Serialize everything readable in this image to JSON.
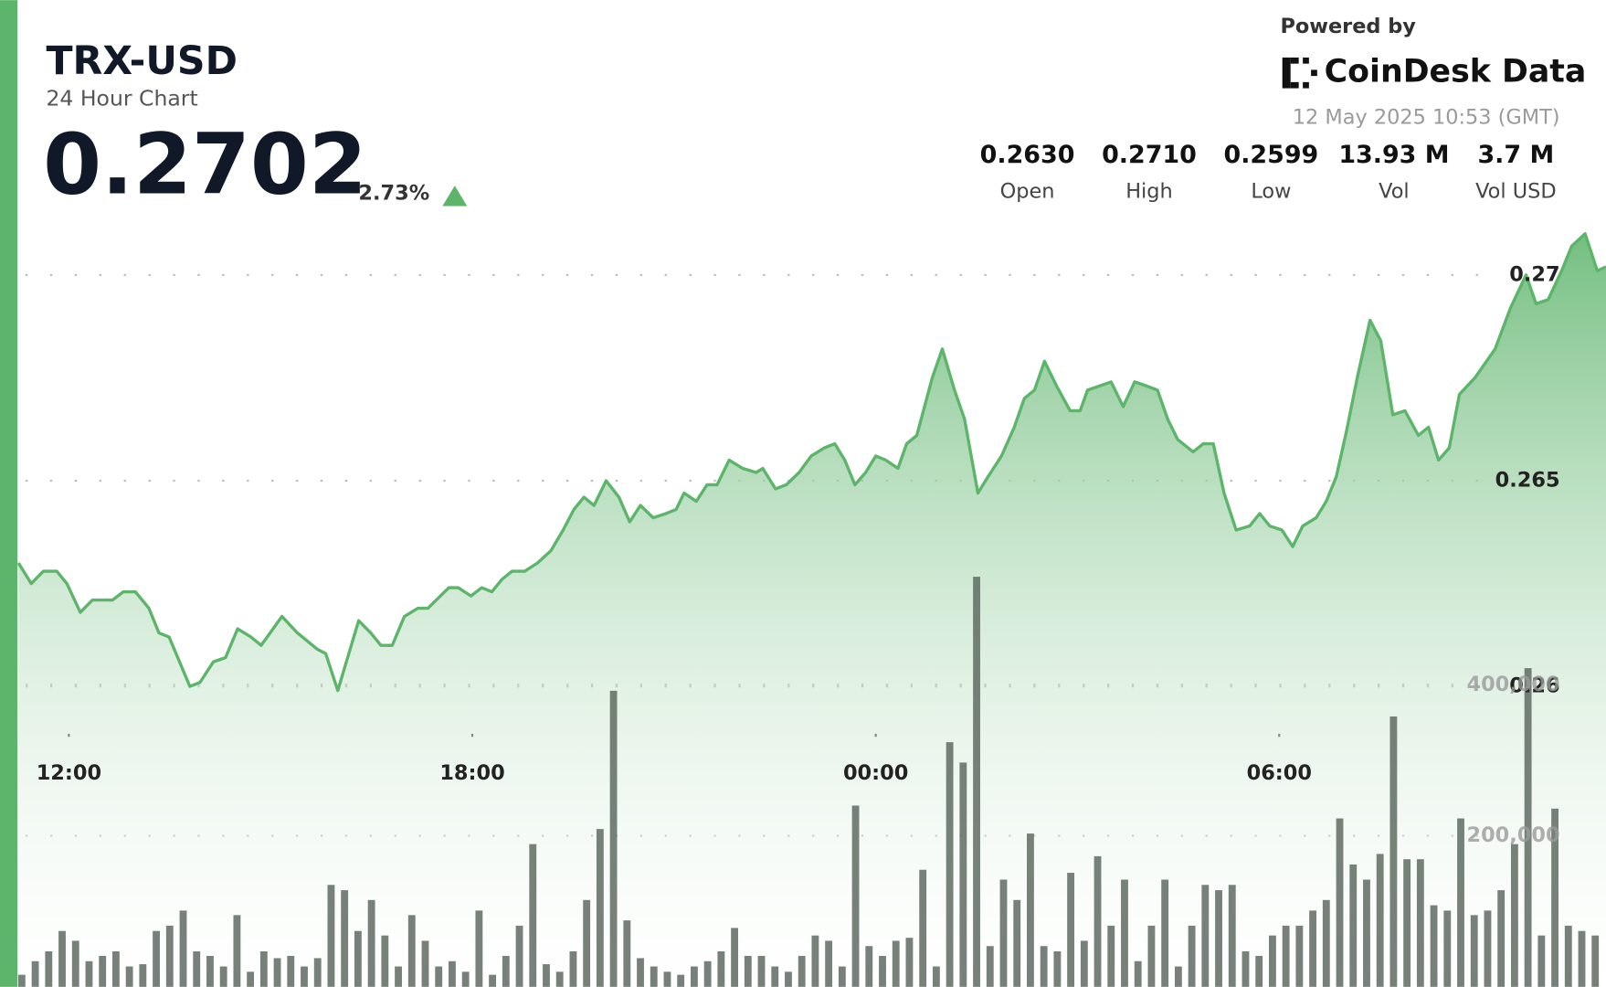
{
  "header": {
    "powered_by": "Powered by",
    "brand": "CoinDesk Data",
    "timestamp": "12 May 2025 10:53 (GMT)",
    "price": "0.2702",
    "change": "2.73%",
    "stats": [
      {
        "value": "0.2630",
        "label": "Open"
      },
      {
        "value": "0.2710",
        "label": "High"
      },
      {
        "value": "0.2599",
        "label": "Low"
      },
      {
        "value": "13.93 M",
        "label": "Vol"
      },
      {
        "value": "3.7 M",
        "label": "Vol USD"
      }
    ]
  },
  "chart_data": {
    "type": "line",
    "title": "TRX-USD",
    "subtitle": "24 Hour Chart",
    "color": "#5cb56a",
    "grid": true,
    "x": [
      11.25,
      11.44,
      11.62,
      11.82,
      11.97,
      12.17,
      12.35,
      12.65,
      12.81,
      12.99,
      13.19,
      13.34,
      13.49,
      13.8,
      13.95,
      14.15,
      14.33,
      14.51,
      14.71,
      14.86,
      15.17,
      15.4,
      15.7,
      15.82,
      16.0,
      16.31,
      16.49,
      16.64,
      16.81,
      16.99,
      17.19,
      17.34,
      17.65,
      17.79,
      17.98,
      18.14,
      18.29,
      18.44,
      18.59,
      18.78,
      18.97,
      19.17,
      19.35,
      19.51,
      19.66,
      19.81,
      19.99,
      20.18,
      20.34,
      20.5,
      20.69,
      20.88,
      21.03,
      21.15,
      21.33,
      21.49,
      21.64,
      21.82,
      22.02,
      22.22,
      22.32,
      22.51,
      22.67,
      22.86,
      23.04,
      23.24,
      23.39,
      23.54,
      23.69,
      23.85,
      24.0,
      24.15,
      24.33,
      24.46,
      24.61,
      24.84,
      24.99,
      25.17,
      25.32,
      25.52,
      25.67,
      25.87,
      26.06,
      26.21,
      26.36,
      26.51,
      26.69,
      26.89,
      27.04,
      27.15,
      27.5,
      27.68,
      27.85,
      28.03,
      28.19,
      28.34,
      28.49,
      28.72,
      28.87,
      29.02,
      29.18,
      29.36,
      29.56,
      29.71,
      29.86,
      30.04,
      30.2,
      30.35,
      30.55,
      30.7,
      30.85,
      31.0,
      31.16,
      31.35,
      31.51,
      31.69,
      31.87,
      32.07,
      32.22,
      32.37,
      32.53,
      32.68,
      32.91,
      33.21,
      33.44,
      33.67,
      33.82,
      34.0,
      34.2,
      34.35,
      34.55,
      34.73,
      34.86
    ],
    "values": [
      0.263,
      0.2625,
      0.2628,
      0.2628,
      0.2625,
      0.2618,
      0.2621,
      0.2621,
      0.2623,
      0.2623,
      0.2619,
      0.2613,
      0.2612,
      0.26,
      0.2601,
      0.2606,
      0.2607,
      0.2614,
      0.2612,
      0.261,
      0.2617,
      0.2613,
      0.2609,
      0.2608,
      0.2599,
      0.2616,
      0.2613,
      0.261,
      0.261,
      0.2617,
      0.2619,
      0.2619,
      0.2624,
      0.2624,
      0.2622,
      0.2624,
      0.2623,
      0.2626,
      0.2628,
      0.2628,
      0.263,
      0.2633,
      0.2638,
      0.2643,
      0.2646,
      0.2644,
      0.265,
      0.2646,
      0.264,
      0.2644,
      0.2641,
      0.2642,
      0.2643,
      0.2647,
      0.2645,
      0.2649,
      0.2649,
      0.2655,
      0.2653,
      0.2652,
      0.2653,
      0.2648,
      0.2649,
      0.2652,
      0.2656,
      0.2658,
      0.2659,
      0.2655,
      0.2649,
      0.2652,
      0.2656,
      0.2655,
      0.2653,
      0.2659,
      0.2661,
      0.2675,
      0.2682,
      0.2672,
      0.2665,
      0.2647,
      0.2651,
      0.2656,
      0.2663,
      0.267,
      0.2672,
      0.2679,
      0.2673,
      0.2667,
      0.2667,
      0.2672,
      0.2674,
      0.2668,
      0.2674,
      0.2673,
      0.2672,
      0.2665,
      0.266,
      0.2657,
      0.2659,
      0.2659,
      0.2647,
      0.2638,
      0.2639,
      0.2642,
      0.2639,
      0.2638,
      0.2634,
      0.2639,
      0.2641,
      0.2645,
      0.2651,
      0.2662,
      0.2675,
      0.2689,
      0.2684,
      0.2666,
      0.2667,
      0.2661,
      0.2663,
      0.2655,
      0.2658,
      0.2671,
      0.2675,
      0.2682,
      0.2692,
      0.27,
      0.2693,
      0.2694,
      0.2701,
      0.2707,
      0.271,
      0.2701,
      0.2702
    ],
    "xlim": [
      11.25,
      34.86
    ],
    "xticks": [
      {
        "value": 12,
        "label": "12:00"
      },
      {
        "value": 18,
        "label": "18:00"
      },
      {
        "value": 24,
        "label": "00:00"
      },
      {
        "value": 30,
        "label": "06:00"
      }
    ],
    "ylim": [
      0.2527,
      0.2712
    ],
    "yticks": [
      0.26,
      0.265,
      0.27
    ],
    "y2lim": [
      0,
      1008000
    ],
    "y2ticks": [
      {
        "value": 200000,
        "label": "200,000"
      },
      {
        "value": 400000,
        "label": "400,000"
      }
    ],
    "bars": {
      "type": "bar",
      "axis": "y2",
      "color": "#5f6b62",
      "x": [
        11.3,
        11.5,
        11.7,
        11.9,
        12.1,
        12.3,
        12.5,
        12.7,
        12.9,
        13.1,
        13.3,
        13.5,
        13.7,
        13.9,
        14.1,
        14.3,
        14.5,
        14.7,
        14.9,
        15.1,
        15.3,
        15.5,
        15.7,
        15.9,
        16.1,
        16.3,
        16.5,
        16.7,
        16.9,
        17.1,
        17.3,
        17.5,
        17.7,
        17.9,
        18.1,
        18.3,
        18.5,
        18.7,
        18.9,
        19.1,
        19.3,
        19.5,
        19.7,
        19.9,
        20.1,
        20.3,
        20.5,
        20.7,
        20.9,
        21.1,
        21.3,
        21.5,
        21.7,
        21.9,
        22.1,
        22.3,
        22.5,
        22.7,
        22.9,
        23.1,
        23.3,
        23.5,
        23.7,
        23.9,
        24.1,
        24.3,
        24.5,
        24.7,
        24.9,
        25.1,
        25.3,
        25.5,
        25.7,
        25.9,
        26.1,
        26.3,
        26.5,
        26.7,
        26.9,
        27.1,
        27.3,
        27.5,
        27.7,
        27.9,
        28.1,
        28.3,
        28.5,
        28.7,
        28.9,
        29.1,
        29.3,
        29.5,
        29.7,
        29.9,
        30.1,
        30.3,
        30.5,
        30.7,
        30.9,
        31.1,
        31.3,
        31.5,
        31.7,
        31.9,
        32.1,
        32.3,
        32.5,
        32.7,
        32.9,
        33.1,
        33.3,
        33.5,
        33.7,
        33.9,
        34.1,
        34.3,
        34.5,
        34.7
      ],
      "values": [
        16000,
        34000,
        47000,
        74000,
        61000,
        34000,
        41000,
        47000,
        27000,
        30000,
        74000,
        81000,
        101000,
        47000,
        41000,
        27000,
        95000,
        20000,
        47000,
        38000,
        41000,
        27000,
        38000,
        135000,
        128000,
        74000,
        115000,
        68000,
        27000,
        95000,
        61000,
        27000,
        34000,
        20000,
        101000,
        16000,
        41000,
        81000,
        189000,
        30000,
        20000,
        47000,
        115000,
        209000,
        392000,
        88000,
        38000,
        27000,
        20000,
        16000,
        27000,
        34000,
        47000,
        78000,
        41000,
        41000,
        27000,
        20000,
        41000,
        68000,
        61000,
        27000,
        240000,
        54000,
        41000,
        61000,
        65000,
        155000,
        27000,
        324000,
        297000,
        543000,
        54000,
        142000,
        115000,
        203000,
        54000,
        47000,
        151000,
        61000,
        173000,
        81000,
        142000,
        34000,
        81000,
        142000,
        27000,
        81000,
        135000,
        128000,
        135000,
        47000,
        41000,
        68000,
        81000,
        81000,
        101000,
        115000,
        223000,
        162000,
        142000,
        176000,
        358000,
        169000,
        169000,
        108000,
        101000,
        223000,
        95000,
        101000,
        128000,
        189000,
        422000,
        68000,
        236000,
        81000,
        74000,
        68000
      ]
    }
  }
}
